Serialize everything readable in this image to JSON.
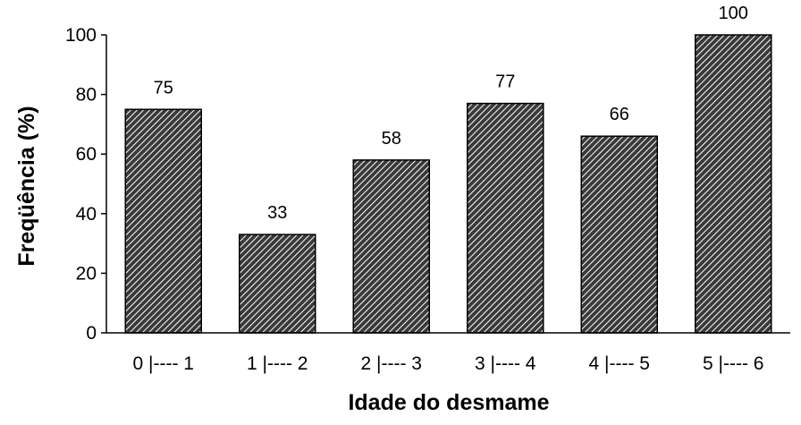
{
  "chart_data": {
    "type": "bar",
    "categories": [
      "0 |---- 1",
      "1 |---- 2",
      "2 |---- 3",
      "3 |---- 4",
      "4 |---- 5",
      "5 |---- 6"
    ],
    "values": [
      75,
      33,
      58,
      77,
      66,
      100
    ],
    "data_labels": [
      "75",
      "33",
      "58",
      "77",
      "66",
      "100"
    ],
    "xlabel": "Idade do desmame",
    "ylabel": "Freqüência (%)",
    "ylim": [
      0,
      100
    ],
    "yticks": [
      0,
      20,
      40,
      60,
      80,
      100
    ],
    "ytick_labels": [
      "0",
      "20",
      "40",
      "60",
      "80",
      "100"
    ],
    "grid": false,
    "bar_pattern": "diagonal-hatch",
    "colors": {
      "bar_fill": "#3a3a3a",
      "bar_hatch": "#ffffff",
      "axis": "#000000"
    }
  }
}
